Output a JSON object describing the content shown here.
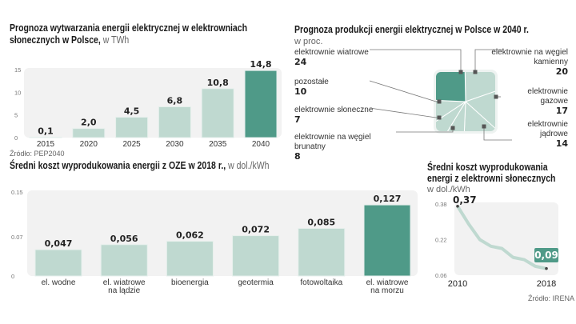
{
  "colors": {
    "light": "#bfd9d0",
    "dark": "#4f9a88",
    "panel": "#f2f2f2"
  },
  "chart_data": [
    {
      "type": "bar",
      "title": "Prognoza wytwarzania energii elektrycznej w elektrowniach słonecznych w Polsce,",
      "unit": "w TWh",
      "categories": [
        "2015",
        "2020",
        "2025",
        "2030",
        "2035",
        "2040"
      ],
      "values": [
        0.1,
        2.0,
        4.5,
        6.8,
        10.8,
        14.8
      ],
      "value_labels": [
        "0,1",
        "2,0",
        "4,5",
        "6,8",
        "10,8",
        "14,8"
      ],
      "yticks": [
        "0",
        "5",
        "10",
        "15"
      ],
      "ylim": [
        0,
        15
      ],
      "highlight": "2040",
      "source": "Źródło: PEP2040"
    },
    {
      "type": "pie",
      "title": "Prognoza produkcji energii elektrycznej w Polsce w 2040 r.",
      "unit": "w proc.",
      "slices": [
        {
          "label": "elektrownie na węgiel kamienny",
          "value": 20
        },
        {
          "label": "elektrownie gazowe",
          "value": 17
        },
        {
          "label": "elektrownie jądrowe",
          "value": 14
        },
        {
          "label": "elektrownie na węgiel brunatny",
          "value": 8
        },
        {
          "label": "elektrownie słoneczne",
          "value": 7
        },
        {
          "label": "pozostałe",
          "value": 10
        },
        {
          "label": "elektrownie wiatrowe",
          "value": 24
        }
      ],
      "highlight": "elektrownie wiatrowe"
    },
    {
      "type": "bar",
      "title": "Średni koszt wyprodukowania energii z OZE w 2018 r.,",
      "unit": "w dol./kWh",
      "categories": [
        "el. wodne",
        "el. wiatrowe na lądzie",
        "bioenergia",
        "geotermia",
        "fotowoltaika",
        "el. wiatrowe na morzu"
      ],
      "values": [
        0.047,
        0.056,
        0.062,
        0.072,
        0.085,
        0.127
      ],
      "value_labels": [
        "0,047",
        "0,056",
        "0,062",
        "0,072",
        "0,085",
        "0,127"
      ],
      "yticks": [
        "0",
        "0.07",
        "0.15"
      ],
      "ylim": [
        0,
        0.15
      ],
      "highlight": "el. wiatrowe na morzu"
    },
    {
      "type": "line",
      "title": "Średni koszt wyprodukowania energi z elektrowni słonecznych",
      "unit": "w dol./kWh",
      "x": [
        2010,
        2011,
        2012,
        2013,
        2014,
        2015,
        2016,
        2017,
        2018
      ],
      "values": [
        0.37,
        0.29,
        0.22,
        0.19,
        0.18,
        0.14,
        0.13,
        0.1,
        0.09
      ],
      "xticks": [
        "2010",
        "2018"
      ],
      "yticks": [
        "0.06",
        "0.22",
        "0.38"
      ],
      "ylim": [
        0.06,
        0.38
      ],
      "start_label": "0,37",
      "end_label": "0,09",
      "source": "Źródło: IRENA"
    }
  ]
}
